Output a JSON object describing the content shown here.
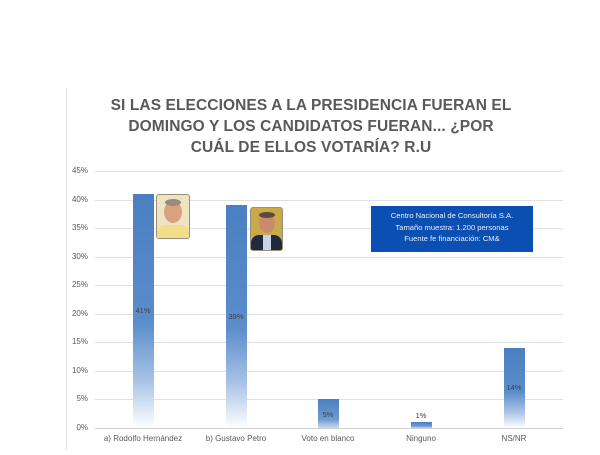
{
  "chart_data": {
    "type": "bar",
    "title": "SI LAS ELECCIONES A LA PRESIDENCIA FUERAN EL DOMINGO Y LOS CANDIDATOS FUERAN... ¿POR CUÁL DE ELLOS VOTARÍA? R.U",
    "categories": [
      "a) Rodolfo Hernández",
      "b) Gustavo Petro",
      "Voto en blanco",
      "Ninguno",
      "NS/NR"
    ],
    "values": [
      41,
      39,
      5,
      1,
      14
    ],
    "value_labels": [
      "41%",
      "39%",
      "5%",
      "1%",
      "14%"
    ],
    "xlabel": "",
    "ylabel": "",
    "ylim": [
      0,
      45
    ],
    "yticks": [
      "0%",
      "5%",
      "10%",
      "15%",
      "20%",
      "25%",
      "30%",
      "35%",
      "40%",
      "45%"
    ],
    "grid": true,
    "legend": "none",
    "bar_color": "#4a7fc1",
    "annotation": {
      "lines": [
        "Centro Nacional de Consultoría S.A.",
        "Tamaño muestra: 1.200 personas",
        "Fuente fe financiación: CM&"
      ],
      "background": "#0b4fb3"
    }
  },
  "title_lines": [
    "SI LAS ELECCIONES A LA PRESIDENCIA FUERAN EL",
    "DOMINGO Y LOS CANDIDATOS FUERAN... ¿POR",
    "CUÁL DE ELLOS VOTARÍA? R.U"
  ],
  "photos": [
    "rodolfo-hernandez-photo",
    "gustavo-petro-photo"
  ]
}
